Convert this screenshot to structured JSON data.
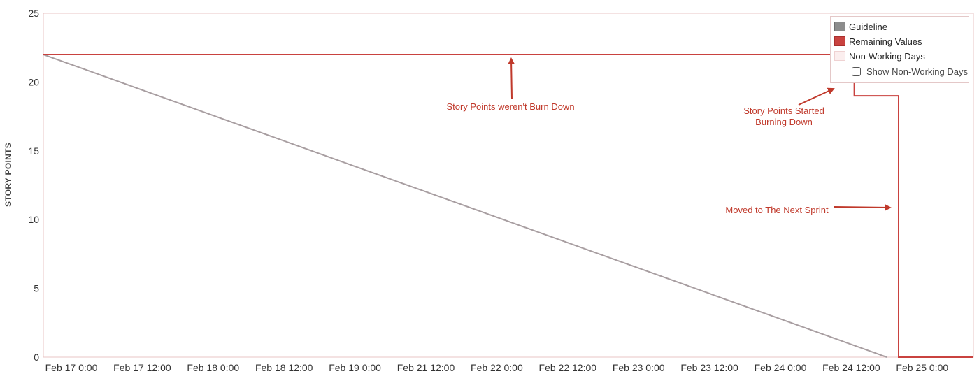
{
  "chart_data": {
    "type": "line",
    "xlabel": "",
    "ylabel": "STORY POINTS",
    "ylim": [
      0,
      25
    ],
    "y_ticks": [
      "0",
      "5",
      "10",
      "15",
      "20",
      "25"
    ],
    "x_ticks": [
      "Feb 17 0:00",
      "Feb 17 12:00",
      "Feb 18 0:00",
      "Feb 18 12:00",
      "Feb 19 0:00",
      "Feb 21 12:00",
      "Feb 22 0:00",
      "Feb 22 12:00",
      "Feb 23 0:00",
      "Feb 23 12:00",
      "Feb 24 0:00",
      "Feb 24 12:00",
      "Feb 25 0:00"
    ],
    "grid": false,
    "legend_position": "top-right",
    "series": [
      {
        "name": "Guideline",
        "color": "#9e9e9e",
        "points": [
          {
            "x": "Feb 17 0:00",
            "y": 22
          },
          {
            "x": "Feb 24 18:00",
            "y": 0
          }
        ]
      },
      {
        "name": "Remaining Values",
        "color": "#c9423f",
        "step": true,
        "points": [
          {
            "x": "Feb 17 0:00",
            "y": 22
          },
          {
            "x": "Feb 24 12:00",
            "y": 22
          },
          {
            "x": "Feb 24 12:30",
            "y": 19
          },
          {
            "x": "Feb 24 20:00",
            "y": 0
          },
          {
            "x": "Feb 25 20:00",
            "y": 0
          }
        ]
      }
    ],
    "legend": {
      "items": [
        {
          "name": "Guideline",
          "color": "#8c8c8c"
        },
        {
          "name": "Remaining Values",
          "color": "#c9423f"
        },
        {
          "name": "Non-Working Days",
          "color": "#fbeeee"
        }
      ],
      "toggle_label": "Show Non-Working Days",
      "toggle_checked": false
    },
    "annotations": [
      {
        "text": "Story Points weren't Burn Down",
        "target_x": "Feb 22 0:00",
        "target_y": 22
      },
      {
        "text_lines": [
          "Story Points Started",
          "Burning Down"
        ],
        "target_x": "Feb 24 12:00",
        "target_y": 20
      },
      {
        "text": "Moved to The Next Sprint",
        "target_x": "Feb 24 20:00",
        "target_y": 11
      }
    ],
    "colors": {
      "frame": "#e8c4c4",
      "annotation": "#c0392b"
    }
  }
}
